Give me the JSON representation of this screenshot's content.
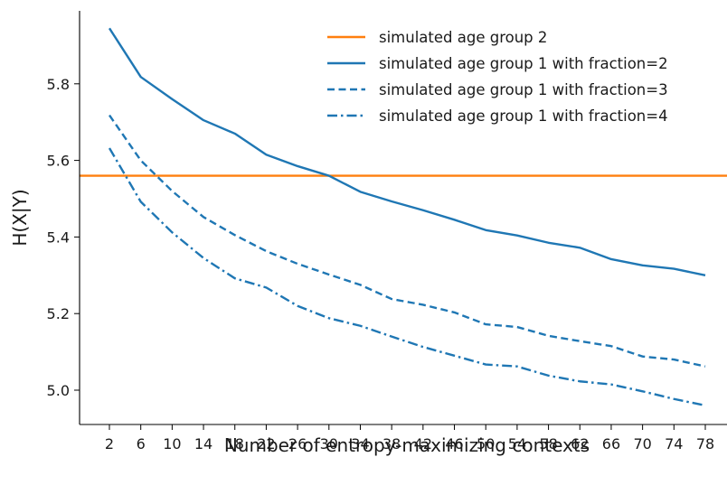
{
  "chart_data": {
    "type": "line",
    "title": "",
    "xlabel": "Number of entropy-maximizing contexts",
    "ylabel": "H(X|Y)",
    "x": [
      2,
      6,
      10,
      14,
      18,
      22,
      26,
      30,
      34,
      38,
      42,
      46,
      50,
      54,
      58,
      62,
      66,
      70,
      74,
      78
    ],
    "xticks": [
      "2",
      "6",
      "10",
      "14",
      "18",
      "22",
      "26",
      "30",
      "34",
      "38",
      "42",
      "46",
      "50",
      "54",
      "58",
      "62",
      "66",
      "70",
      "74",
      "78"
    ],
    "yticks": [
      "5.0",
      "5.2",
      "5.4",
      "5.6",
      "5.8"
    ],
    "xlim": [
      -1.5,
      80
    ],
    "ylim": [
      4.9,
      5.96
    ],
    "grid": false,
    "legend_position": "top-right",
    "series": [
      {
        "name": "simulated age group 2",
        "kind": "hline",
        "value": 5.56,
        "color": "#ff7f0e",
        "dash": "solid"
      },
      {
        "name": "simulated age group 1 with fraction=2",
        "values": [
          5.945,
          5.818,
          5.76,
          5.705,
          5.67,
          5.615,
          5.585,
          5.56,
          5.518,
          5.493,
          5.47,
          5.445,
          5.418,
          5.404,
          5.385,
          5.372,
          5.342,
          5.326,
          5.317,
          5.3
        ],
        "color": "#1f77b4",
        "dash": "solid"
      },
      {
        "name": "simulated age group 1 with fraction=3",
        "values": [
          5.718,
          5.6,
          5.52,
          5.452,
          5.405,
          5.363,
          5.33,
          5.302,
          5.275,
          5.238,
          5.223,
          5.203,
          5.172,
          5.165,
          5.142,
          5.128,
          5.115,
          5.088,
          5.08,
          5.062
        ],
        "color": "#1f77b4",
        "dash": "dashed"
      },
      {
        "name": "simulated age group 1 with fraction=4",
        "values": [
          5.632,
          5.492,
          5.412,
          5.345,
          5.292,
          5.268,
          5.22,
          5.188,
          5.168,
          5.14,
          5.113,
          5.09,
          5.067,
          5.062,
          5.038,
          5.023,
          5.015,
          4.997,
          4.977,
          4.96
        ],
        "color": "#1f77b4",
        "dash": "dashdot"
      }
    ]
  }
}
